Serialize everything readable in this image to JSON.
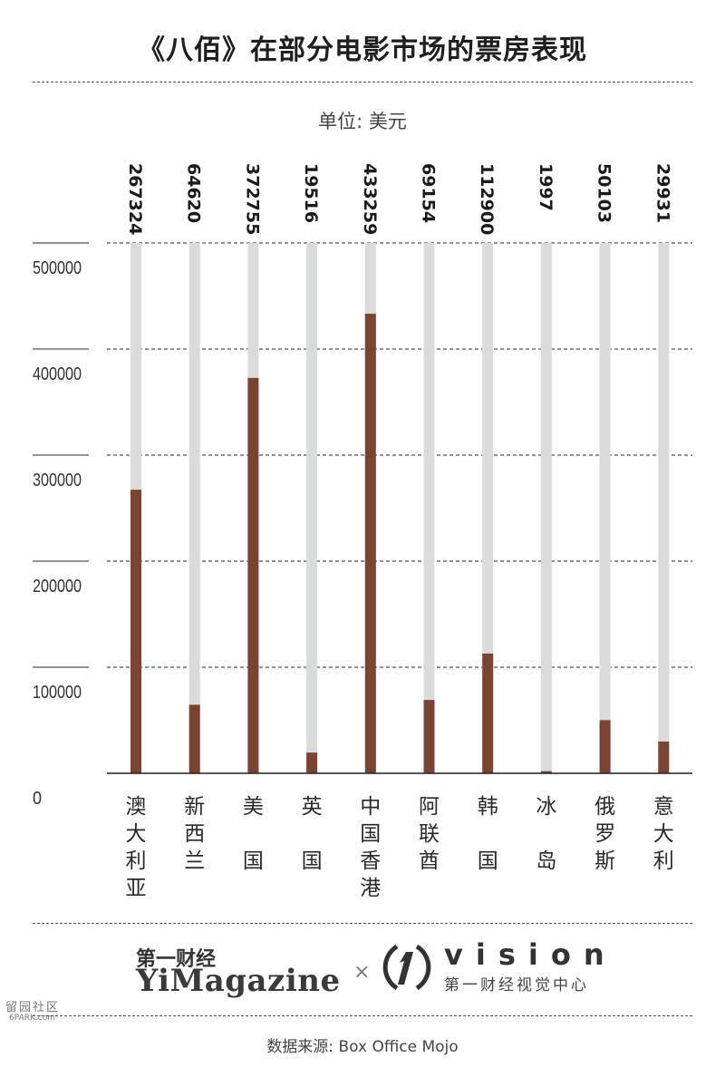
{
  "title": "《八佰》在部分电影市场的票房表现",
  "unit": "单位: 美元",
  "chart_data": {
    "type": "bar",
    "categories": [
      "澳大利亚",
      "新西兰",
      "美国",
      "英国",
      "中国香港",
      "阿联酋",
      "韩国",
      "冰岛",
      "俄罗斯",
      "意大利"
    ],
    "values": [
      267324,
      64620,
      372755,
      19516,
      433259,
      69154,
      112900,
      1997,
      50103,
      29931
    ],
    "value_labels": [
      "267324",
      "64620",
      "372755",
      "19516",
      "433259",
      "69154",
      "112900",
      "1997",
      "50103",
      "29931"
    ],
    "yticks": [
      "0",
      "100000",
      "200000",
      "300000",
      "400000",
      "500000"
    ],
    "ylim": [
      0,
      500000
    ],
    "grid": true,
    "colors": {
      "bar": "#7a4433",
      "track": "#d9dcdb",
      "grid": "#555555"
    }
  },
  "branding": {
    "cn_name": "第一财经",
    "magazine": "YiMagazine",
    "cross": "×",
    "vision_word": "vision",
    "vision_sub": "第一财经视觉中心"
  },
  "watermark": {
    "line1": "留园社区",
    "line2": "6PARK.com"
  },
  "source": "数据来源: Box Office Mojo"
}
